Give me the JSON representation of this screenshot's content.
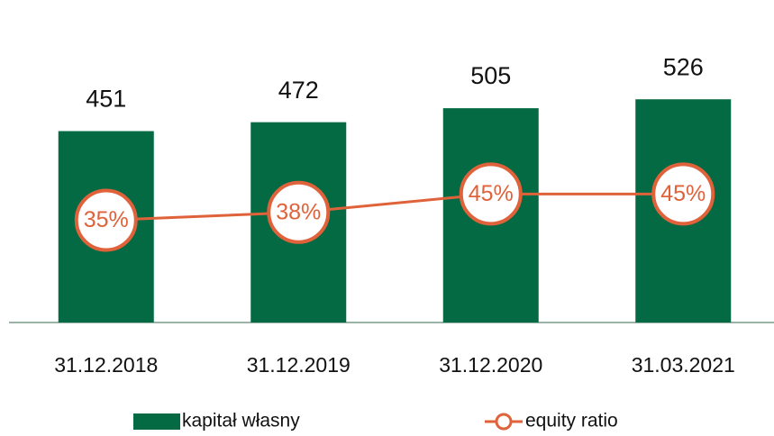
{
  "chart_data": {
    "type": "bar-line",
    "categories": [
      "31.12.2018",
      "31.12.2019",
      "31.12.2020",
      "31.03.2021"
    ],
    "series": [
      {
        "name": "kapitał własny",
        "type": "bar",
        "color": "#046a43",
        "values": [
          451,
          472,
          505,
          526
        ]
      },
      {
        "name": "equity ratio",
        "type": "line",
        "axis": "y2",
        "color": "#e0623a",
        "values": [
          35,
          38,
          45,
          45
        ],
        "value_labels": [
          "35%",
          "38%",
          "45%",
          "45%"
        ]
      }
    ],
    "ylim": [
      0,
      760
    ],
    "y2lim": [
      -4,
      119
    ]
  }
}
